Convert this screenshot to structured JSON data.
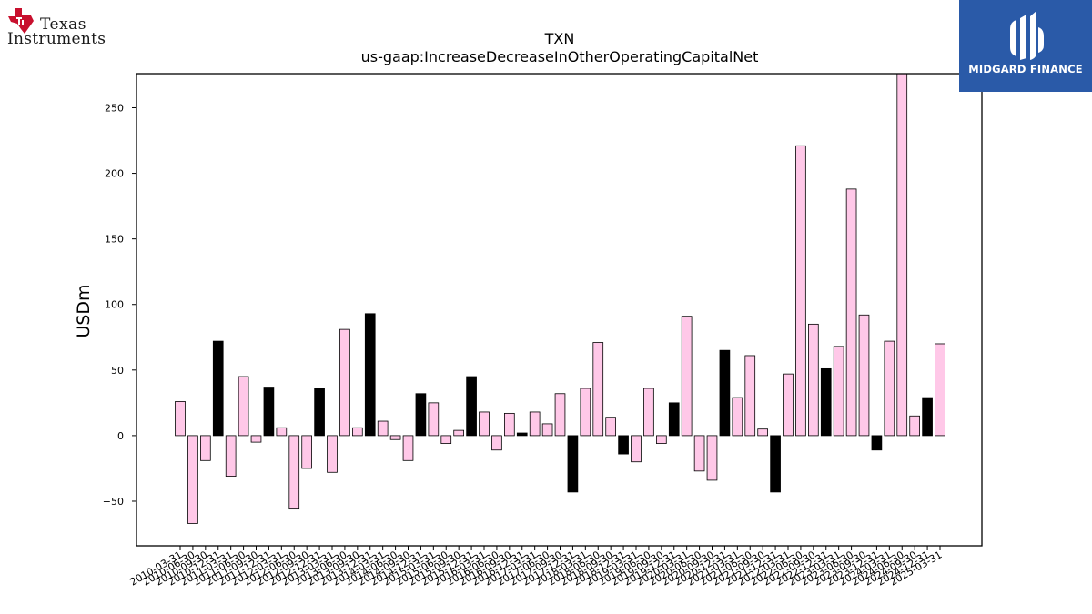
{
  "logos": {
    "ti_line1": "Texas",
    "ti_line2": "Instruments",
    "midgard": "MIDGARD FINANCE"
  },
  "colors": {
    "positive_bar": "#ffc8e8",
    "highlight_bar": "#000000",
    "bar_edge": "#000000",
    "midgard_bg": "#2a5aa8"
  },
  "chart_data": {
    "type": "bar",
    "title": "TXN",
    "subtitle": "us-gaap:IncreaseDecreaseInOtherOperatingCapitalNet",
    "ylabel": "USDm",
    "xlabel": "",
    "ylim": [
      -84,
      276
    ],
    "yticks": [
      -50,
      0,
      50,
      100,
      150,
      200,
      250
    ],
    "ytick_labels": [
      "−50",
      "0",
      "50",
      "100",
      "150",
      "200",
      "250"
    ],
    "grid": false,
    "categories": [
      "2010-03-31",
      "2010-06-30",
      "2010-09-30",
      "2010-12-31",
      "2011-03-31",
      "2011-06-30",
      "2011-09-30",
      "2011-12-31",
      "2012-03-31",
      "2012-06-30",
      "2012-09-30",
      "2012-12-31",
      "2013-03-31",
      "2013-06-30",
      "2013-09-30",
      "2013-12-31",
      "2014-03-31",
      "2014-06-30",
      "2014-09-30",
      "2014-12-31",
      "2015-03-31",
      "2015-06-30",
      "2015-09-30",
      "2015-12-31",
      "2016-03-31",
      "2016-06-30",
      "2016-09-30",
      "2016-12-31",
      "2017-03-31",
      "2017-06-30",
      "2017-09-30",
      "2017-12-31",
      "2018-03-31",
      "2018-06-30",
      "2018-09-30",
      "2018-12-31",
      "2019-03-31",
      "2019-06-30",
      "2019-09-30",
      "2019-12-31",
      "2020-03-31",
      "2020-06-30",
      "2020-09-30",
      "2020-12-31",
      "2021-03-31",
      "2021-06-30",
      "2021-09-30",
      "2021-12-31",
      "2022-03-31",
      "2022-06-30",
      "2022-09-30",
      "2022-12-31",
      "2023-03-31",
      "2023-06-30",
      "2023-09-30",
      "2023-12-31",
      "2024-03-31",
      "2024-06-30",
      "2024-09-30",
      "2024-12-31",
      "2025-03-31"
    ],
    "values": [
      26,
      -67,
      -19,
      72,
      -31,
      45,
      -5,
      37,
      6,
      -56,
      -25,
      36,
      -28,
      81,
      6,
      93,
      11,
      -3,
      -19,
      32,
      25,
      -6,
      4,
      45,
      18,
      -11,
      17,
      2,
      18,
      9,
      32,
      -43,
      36,
      71,
      14,
      -14,
      -20,
      36,
      -6,
      25,
      91,
      -27,
      -34,
      65,
      29,
      61,
      5,
      -43,
      47,
      221,
      85,
      51,
      68,
      188,
      92,
      -11,
      72,
      276,
      15,
      29,
      70
    ],
    "highlight": [
      false,
      false,
      false,
      true,
      false,
      false,
      false,
      true,
      false,
      false,
      false,
      true,
      false,
      false,
      false,
      true,
      false,
      false,
      false,
      true,
      false,
      false,
      false,
      true,
      false,
      false,
      false,
      true,
      false,
      false,
      false,
      true,
      false,
      false,
      false,
      true,
      false,
      false,
      false,
      true,
      false,
      false,
      false,
      true,
      false,
      false,
      false,
      true,
      false,
      false,
      false,
      true,
      false,
      false,
      false,
      true,
      false,
      false,
      false,
      true,
      false
    ]
  }
}
